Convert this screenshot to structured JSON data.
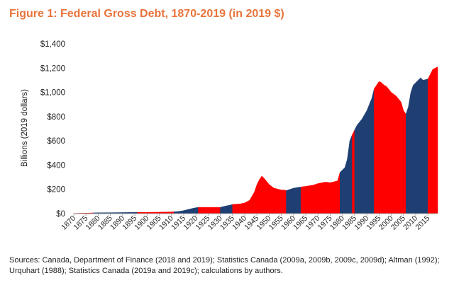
{
  "title": "Figure 1: Federal Gross Debt, 1870-2019 (in 2019 $)",
  "source": "Sources: Canada, Department of Finance (2018 and 2019); Statistics Canada (2009a, 2009b, 2009c, 2009d); Altman (1992); Urquhart (1988); Statistics Canada (2019a and 2019c); calculations by authors.",
  "chart_data": {
    "type": "area",
    "title": "Figure 1: Federal Gross Debt, 1870-2019 (in 2019 $)",
    "xlabel": "",
    "ylabel": "Billions (2019 dollars)",
    "xlim": [
      1870,
      2019
    ],
    "ylim": [
      0,
      1400
    ],
    "grid": false,
    "legend": "none",
    "y_ticks": [
      0,
      200,
      400,
      600,
      800,
      1000,
      1200,
      1400
    ],
    "y_tick_labels": [
      "$0",
      "$200",
      "$400",
      "$600",
      "$800",
      "$1,000",
      "$1,200",
      "$1,400"
    ],
    "x_tick_labels": [
      "1870",
      "1875",
      "1880",
      "1885",
      "1890",
      "1895",
      "1900",
      "1905",
      "1910",
      "1915",
      "1920",
      "1925",
      "1930",
      "1935",
      "1940",
      "1945",
      "1950",
      "1955",
      "1960",
      "1965",
      "1970",
      "1975",
      "1980",
      "1985",
      "1990",
      "1995",
      "2000",
      "2005",
      "2010",
      "2015"
    ],
    "colors": {
      "red": "#ff0000",
      "blue": "#1f3f73"
    },
    "segments": [
      {
        "color": "red",
        "start": 1870,
        "end": 1878
      },
      {
        "color": "blue",
        "start": 1878,
        "end": 1896
      },
      {
        "color": "red",
        "start": 1896,
        "end": 1911
      },
      {
        "color": "blue",
        "start": 1911,
        "end": 1921
      },
      {
        "color": "red",
        "start": 1921,
        "end": 1930
      },
      {
        "color": "blue",
        "start": 1930,
        "end": 1935
      },
      {
        "color": "red",
        "start": 1935,
        "end": 1957
      },
      {
        "color": "blue",
        "start": 1957,
        "end": 1963
      },
      {
        "color": "red",
        "start": 1963,
        "end": 1979
      },
      {
        "color": "blue",
        "start": 1979,
        "end": 1984
      },
      {
        "color": "red",
        "start": 1984,
        "end": 1985
      },
      {
        "color": "blue",
        "start": 1985,
        "end": 1993
      },
      {
        "color": "red",
        "start": 1993,
        "end": 2006
      },
      {
        "color": "blue",
        "start": 2006,
        "end": 2015
      },
      {
        "color": "red",
        "start": 2015,
        "end": 2019
      }
    ],
    "x": [
      1870,
      1872,
      1875,
      1878,
      1880,
      1885,
      1890,
      1895,
      1900,
      1905,
      1910,
      1911,
      1913,
      1915,
      1917,
      1919,
      1921,
      1925,
      1930,
      1932,
      1934,
      1935,
      1938,
      1940,
      1942,
      1944,
      1945,
      1946,
      1947,
      1948,
      1950,
      1952,
      1955,
      1956,
      1957,
      1960,
      1963,
      1965,
      1968,
      1970,
      1973,
      1975,
      1978,
      1979,
      1980,
      1981,
      1982,
      1983,
      1984,
      1985,
      1986,
      1988,
      1990,
      1992,
      1993,
      1994,
      1995,
      1996,
      1997,
      1998,
      2000,
      2002,
      2004,
      2005,
      2006,
      2007,
      2008,
      2009,
      2010,
      2012,
      2013,
      2015,
      2017,
      2019
    ],
    "values": [
      2,
      3,
      4,
      6,
      7,
      8,
      9,
      10,
      11,
      12,
      14,
      15,
      18,
      25,
      35,
      45,
      52,
      52,
      52,
      62,
      70,
      76,
      80,
      88,
      110,
      180,
      240,
      280,
      310,
      290,
      240,
      210,
      195,
      195,
      190,
      210,
      220,
      225,
      235,
      248,
      260,
      255,
      270,
      340,
      360,
      380,
      450,
      600,
      650,
      690,
      730,
      780,
      850,
      950,
      1030,
      1060,
      1090,
      1080,
      1060,
      1050,
      1000,
      970,
      920,
      850,
      820,
      880,
      1000,
      1060,
      1080,
      1120,
      1100,
      1110,
      1190,
      1210
    ]
  }
}
